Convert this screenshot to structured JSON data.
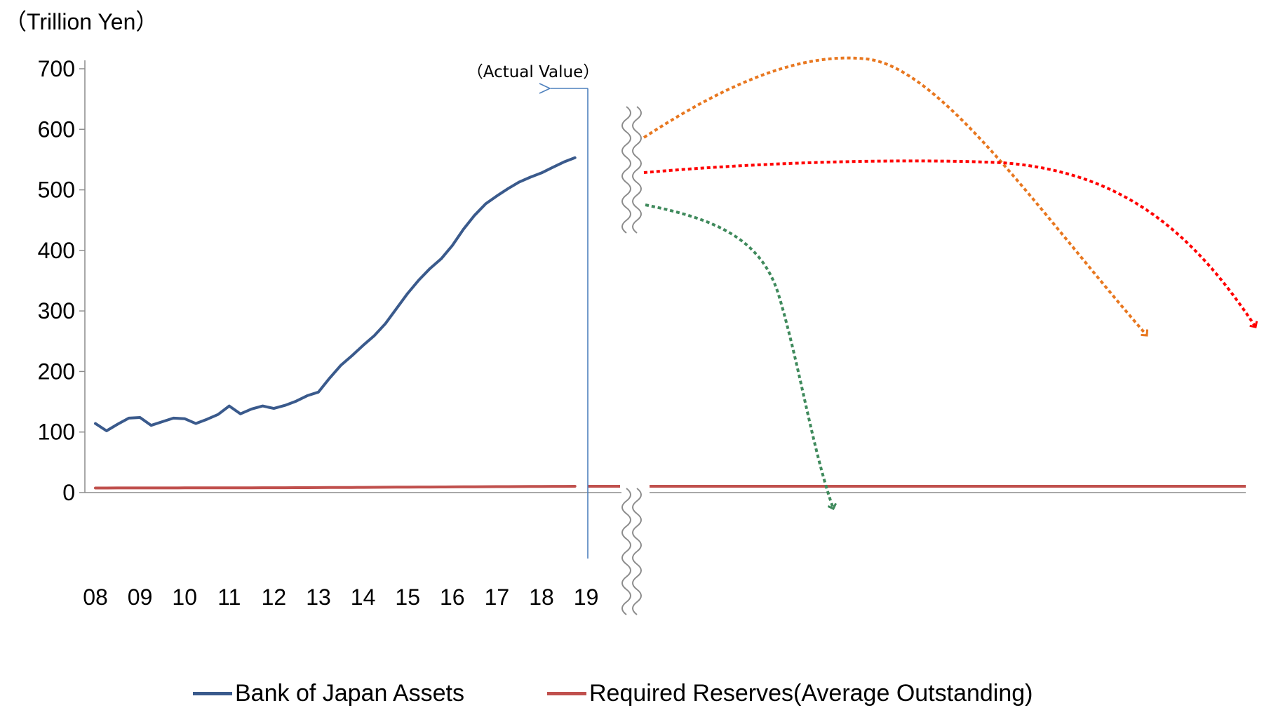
{
  "chart_data": {
    "type": "line",
    "unit_label": "（Trillion Yen）",
    "annotation": "（Actual Value）",
    "ylim": [
      0,
      700
    ],
    "yticks": [
      0,
      100,
      200,
      300,
      400,
      500,
      600,
      700
    ],
    "xticks": [
      "08",
      "09",
      "10",
      "11",
      "12",
      "13",
      "14",
      "15",
      "16",
      "17",
      "18",
      "19"
    ],
    "grid": false,
    "legend_position": "bottom",
    "x_quarters": [
      2008.0,
      2008.25,
      2008.5,
      2008.75,
      2009.0,
      2009.25,
      2009.5,
      2009.75,
      2010.0,
      2010.25,
      2010.5,
      2010.75,
      2011.0,
      2011.25,
      2011.5,
      2011.75,
      2012.0,
      2012.25,
      2012.5,
      2012.75,
      2013.0,
      2013.25,
      2013.5,
      2013.75,
      2014.0,
      2014.25,
      2014.5,
      2014.75,
      2015.0,
      2015.25,
      2015.5,
      2015.75,
      2016.0,
      2016.25,
      2016.5,
      2016.75,
      2017.0,
      2017.25,
      2017.5,
      2017.75,
      2018.0,
      2018.25,
      2018.5,
      2018.75
    ],
    "series": [
      {
        "name": "Bank of Japan Assets",
        "color": "#3a5a8c",
        "values": [
          114,
          102,
          113,
          123,
          124,
          111,
          117,
          123,
          122,
          114,
          121,
          129,
          143,
          130,
          138,
          143,
          139,
          144,
          151,
          160,
          166,
          189,
          210,
          226,
          243,
          259,
          279,
          304,
          329,
          351,
          370,
          386,
          408,
          435,
          458,
          477,
          490,
          502,
          513,
          521,
          528,
          537,
          546,
          553
        ]
      },
      {
        "name": "Required Reserves(Average Outstanding)",
        "color": "#c0504d",
        "values": [
          7.5,
          7.5,
          7.6,
          7.6,
          7.7,
          7.7,
          7.7,
          7.7,
          7.8,
          7.8,
          7.8,
          7.8,
          7.9,
          7.9,
          7.9,
          8.0,
          8.0,
          8.0,
          8.1,
          8.1,
          8.2,
          8.3,
          8.4,
          8.5,
          8.6,
          8.7,
          8.8,
          8.9,
          9.0,
          9.1,
          9.2,
          9.3,
          9.4,
          9.5,
          9.6,
          9.7,
          9.8,
          9.9,
          10.0,
          10.1,
          10.2,
          10.3,
          10.3,
          10.4
        ]
      }
    ],
    "projection_colors": {
      "orange": "#e8771f",
      "red": "#ff0000",
      "green": "#3f8a5c",
      "break_marker": "#8c8c8c",
      "annotation_line": "#4f81bd"
    }
  }
}
